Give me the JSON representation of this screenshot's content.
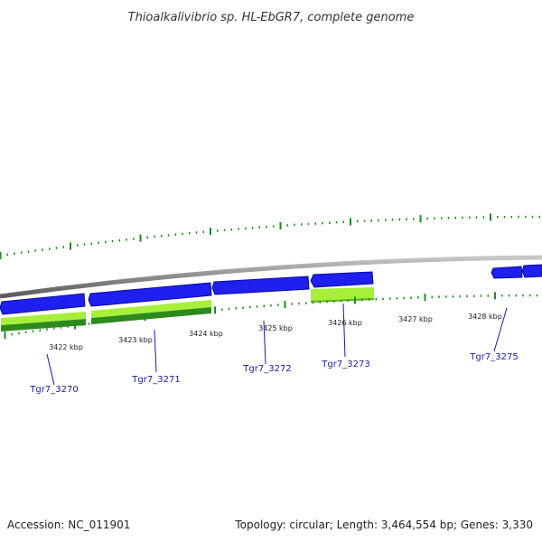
{
  "title": "Thioalkalivibrio sp. HL-EbGR7, complete genome",
  "colors": {
    "backbone": "#8c8c8c",
    "cds": "#1f1ff0",
    "cds_dark": "#0a0a9c",
    "lime": "#a6f03a",
    "lime_dark": "#5fae1a",
    "green": "#2f8a1e",
    "green_dark": "#1d5e12",
    "tick": "#1e8a1e",
    "label": "#1a1aa0"
  },
  "scale_labels": [
    "3422 kbp",
    "3423 kbp",
    "3424 kbp",
    "3425 kbp",
    "3426 kbp",
    "3427 kbp",
    "3428 kbp"
  ],
  "genes": [
    {
      "name": "Tgr7_3270"
    },
    {
      "name": "Tgr7_3271"
    },
    {
      "name": "Tgr7_3272"
    },
    {
      "name": "Tgr7_3273"
    },
    {
      "name": "Tgr7_3275"
    }
  ],
  "footer": {
    "accession": "Accession: NC_011901",
    "topology": "Topology: circular; Length: 3,464,554 bp; Genes: 3,330"
  }
}
